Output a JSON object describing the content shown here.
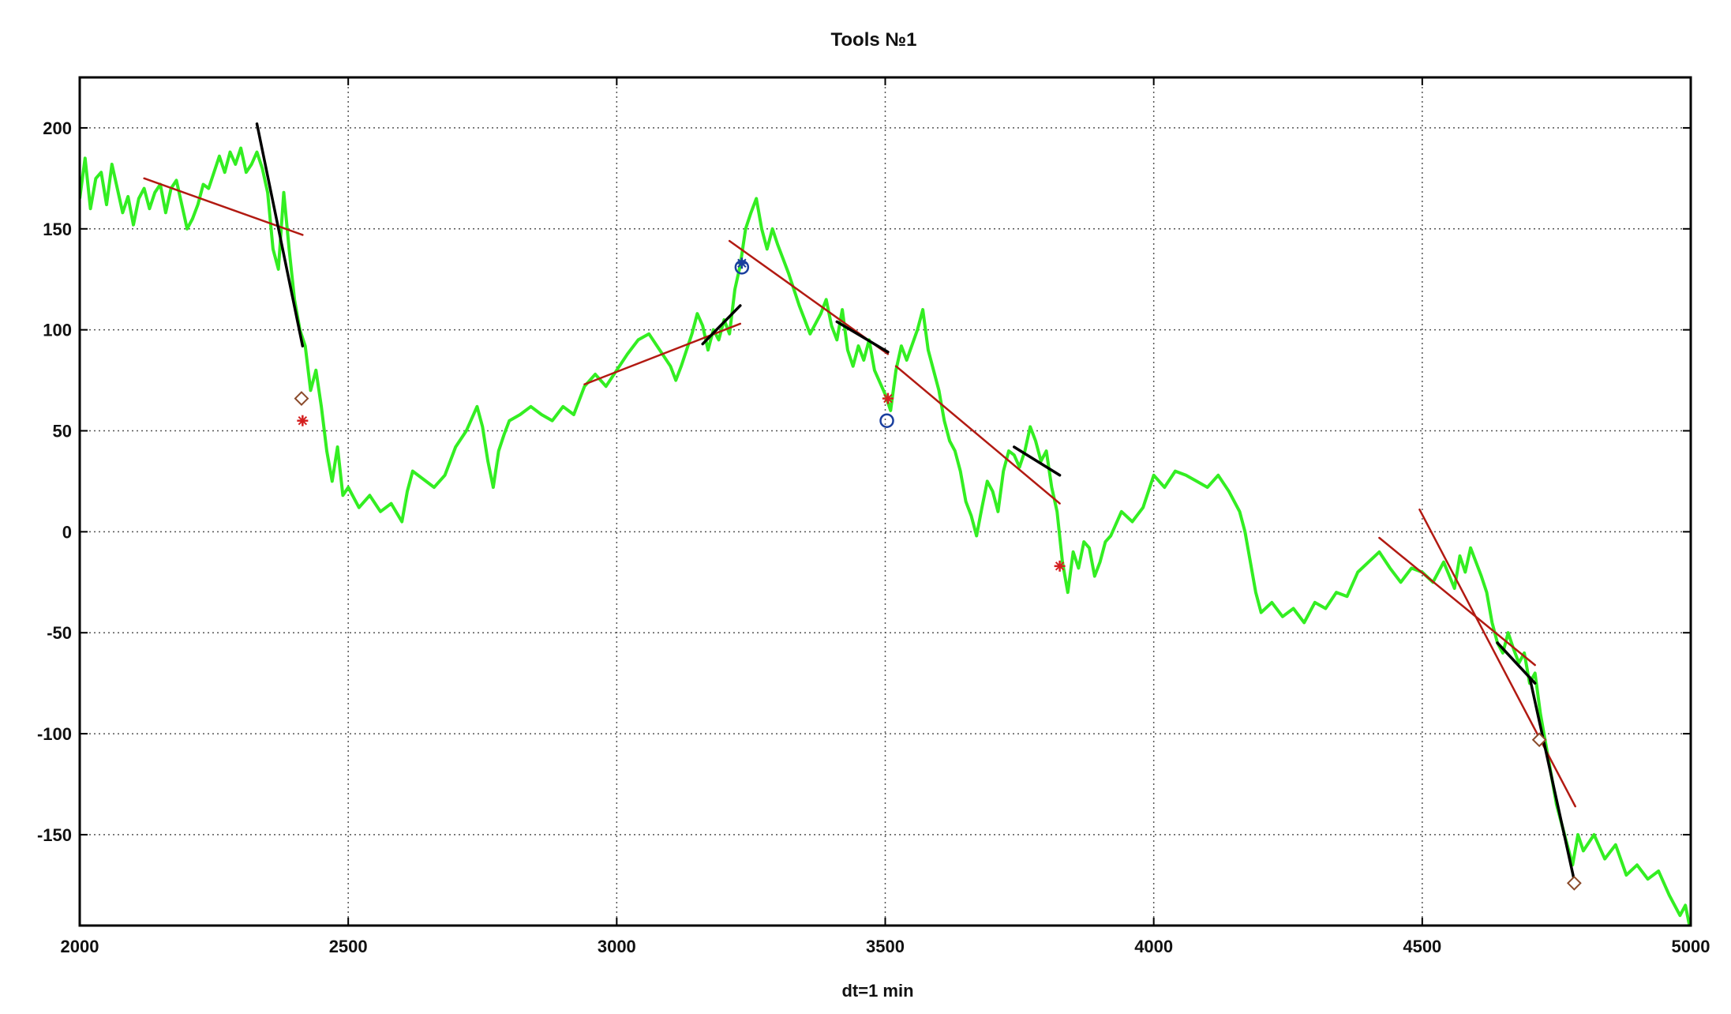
{
  "chart_data": {
    "type": "line",
    "title": "Tools №1",
    "xlabel": "dt=1 min",
    "ylabel": "",
    "xlim": [
      2000,
      5000
    ],
    "ylim": [
      -195,
      225
    ],
    "x_ticks": [
      2000,
      2500,
      3000,
      3500,
      4000,
      4500,
      5000
    ],
    "y_ticks": [
      -150,
      -100,
      -50,
      0,
      50,
      100,
      150,
      200
    ],
    "x_tick_labels": [
      "2000",
      "2500",
      "3000",
      "3500",
      "4000",
      "4500",
      "5000"
    ],
    "y_tick_labels": [
      "-150",
      "-100",
      "-50",
      "0",
      "50",
      "100",
      "150",
      "200"
    ],
    "grid": true,
    "colors": {
      "price": "#33ee22",
      "trend_red": "#b21a12",
      "trend_black": "#000000",
      "marker_red": "#d42020",
      "marker_blue": "#1a3f9e",
      "marker_diamond": "#8a4a2a"
    },
    "series": [
      {
        "color": "#33ee22",
        "points": [
          [
            2000,
            165
          ],
          [
            2010,
            185
          ],
          [
            2020,
            160
          ],
          [
            2030,
            175
          ],
          [
            2040,
            178
          ],
          [
            2050,
            162
          ],
          [
            2060,
            182
          ],
          [
            2070,
            170
          ],
          [
            2080,
            158
          ],
          [
            2090,
            166
          ],
          [
            2100,
            152
          ],
          [
            2110,
            165
          ],
          [
            2120,
            170
          ],
          [
            2130,
            160
          ],
          [
            2140,
            168
          ],
          [
            2150,
            172
          ],
          [
            2160,
            158
          ],
          [
            2170,
            170
          ],
          [
            2180,
            174
          ],
          [
            2190,
            162
          ],
          [
            2200,
            150
          ],
          [
            2210,
            155
          ],
          [
            2220,
            162
          ],
          [
            2230,
            172
          ],
          [
            2240,
            170
          ],
          [
            2250,
            178
          ],
          [
            2260,
            186
          ],
          [
            2270,
            178
          ],
          [
            2280,
            188
          ],
          [
            2290,
            182
          ],
          [
            2300,
            190
          ],
          [
            2310,
            178
          ],
          [
            2320,
            182
          ],
          [
            2330,
            188
          ],
          [
            2340,
            180
          ],
          [
            2350,
            168
          ],
          [
            2360,
            140
          ],
          [
            2370,
            130
          ],
          [
            2380,
            168
          ],
          [
            2390,
            140
          ],
          [
            2400,
            115
          ],
          [
            2410,
            100
          ],
          [
            2420,
            92
          ],
          [
            2430,
            70
          ],
          [
            2440,
            80
          ],
          [
            2450,
            62
          ],
          [
            2460,
            40
          ],
          [
            2470,
            25
          ],
          [
            2480,
            42
          ],
          [
            2490,
            18
          ],
          [
            2500,
            22
          ],
          [
            2520,
            12
          ],
          [
            2540,
            18
          ],
          [
            2560,
            10
          ],
          [
            2580,
            14
          ],
          [
            2600,
            5
          ],
          [
            2610,
            20
          ],
          [
            2620,
            30
          ],
          [
            2640,
            26
          ],
          [
            2660,
            22
          ],
          [
            2680,
            28
          ],
          [
            2700,
            42
          ],
          [
            2720,
            50
          ],
          [
            2740,
            62
          ],
          [
            2750,
            52
          ],
          [
            2760,
            35
          ],
          [
            2770,
            22
          ],
          [
            2780,
            40
          ],
          [
            2790,
            48
          ],
          [
            2800,
            55
          ],
          [
            2820,
            58
          ],
          [
            2840,
            62
          ],
          [
            2860,
            58
          ],
          [
            2880,
            55
          ],
          [
            2900,
            62
          ],
          [
            2920,
            58
          ],
          [
            2940,
            72
          ],
          [
            2960,
            78
          ],
          [
            2980,
            72
          ],
          [
            3000,
            80
          ],
          [
            3020,
            88
          ],
          [
            3040,
            95
          ],
          [
            3060,
            98
          ],
          [
            3080,
            90
          ],
          [
            3100,
            82
          ],
          [
            3110,
            75
          ],
          [
            3120,
            82
          ],
          [
            3140,
            98
          ],
          [
            3150,
            108
          ],
          [
            3160,
            102
          ],
          [
            3170,
            90
          ],
          [
            3180,
            100
          ],
          [
            3190,
            95
          ],
          [
            3200,
            105
          ],
          [
            3210,
            98
          ],
          [
            3220,
            120
          ],
          [
            3230,
            132
          ],
          [
            3240,
            150
          ],
          [
            3250,
            158
          ],
          [
            3260,
            165
          ],
          [
            3270,
            150
          ],
          [
            3280,
            140
          ],
          [
            3290,
            150
          ],
          [
            3300,
            142
          ],
          [
            3310,
            135
          ],
          [
            3320,
            128
          ],
          [
            3330,
            120
          ],
          [
            3340,
            112
          ],
          [
            3350,
            105
          ],
          [
            3360,
            98
          ],
          [
            3380,
            108
          ],
          [
            3390,
            115
          ],
          [
            3400,
            102
          ],
          [
            3410,
            95
          ],
          [
            3420,
            110
          ],
          [
            3430,
            90
          ],
          [
            3440,
            82
          ],
          [
            3450,
            92
          ],
          [
            3460,
            85
          ],
          [
            3470,
            95
          ],
          [
            3480,
            80
          ],
          [
            3500,
            68
          ],
          [
            3510,
            60
          ],
          [
            3520,
            80
          ],
          [
            3530,
            92
          ],
          [
            3540,
            85
          ],
          [
            3560,
            100
          ],
          [
            3570,
            110
          ],
          [
            3580,
            90
          ],
          [
            3590,
            80
          ],
          [
            3600,
            70
          ],
          [
            3610,
            55
          ],
          [
            3620,
            45
          ],
          [
            3630,
            40
          ],
          [
            3640,
            30
          ],
          [
            3650,
            15
          ],
          [
            3660,
            8
          ],
          [
            3670,
            -2
          ],
          [
            3680,
            12
          ],
          [
            3690,
            25
          ],
          [
            3700,
            20
          ],
          [
            3710,
            10
          ],
          [
            3720,
            30
          ],
          [
            3730,
            40
          ],
          [
            3740,
            38
          ],
          [
            3750,
            32
          ],
          [
            3760,
            40
          ],
          [
            3770,
            52
          ],
          [
            3780,
            45
          ],
          [
            3790,
            35
          ],
          [
            3800,
            40
          ],
          [
            3810,
            22
          ],
          [
            3820,
            10
          ],
          [
            3830,
            -15
          ],
          [
            3840,
            -30
          ],
          [
            3850,
            -10
          ],
          [
            3860,
            -18
          ],
          [
            3870,
            -5
          ],
          [
            3880,
            -8
          ],
          [
            3890,
            -22
          ],
          [
            3900,
            -15
          ],
          [
            3910,
            -5
          ],
          [
            3920,
            -2
          ],
          [
            3940,
            10
          ],
          [
            3960,
            5
          ],
          [
            3980,
            12
          ],
          [
            4000,
            28
          ],
          [
            4020,
            22
          ],
          [
            4040,
            30
          ],
          [
            4060,
            28
          ],
          [
            4080,
            25
          ],
          [
            4100,
            22
          ],
          [
            4120,
            28
          ],
          [
            4140,
            20
          ],
          [
            4160,
            10
          ],
          [
            4170,
            0
          ],
          [
            4180,
            -15
          ],
          [
            4190,
            -30
          ],
          [
            4200,
            -40
          ],
          [
            4220,
            -35
          ],
          [
            4240,
            -42
          ],
          [
            4260,
            -38
          ],
          [
            4280,
            -45
          ],
          [
            4300,
            -35
          ],
          [
            4320,
            -38
          ],
          [
            4340,
            -30
          ],
          [
            4360,
            -32
          ],
          [
            4380,
            -20
          ],
          [
            4400,
            -15
          ],
          [
            4420,
            -10
          ],
          [
            4440,
            -18
          ],
          [
            4460,
            -25
          ],
          [
            4480,
            -18
          ],
          [
            4500,
            -20
          ],
          [
            4520,
            -25
          ],
          [
            4540,
            -15
          ],
          [
            4560,
            -28
          ],
          [
            4570,
            -12
          ],
          [
            4580,
            -20
          ],
          [
            4590,
            -8
          ],
          [
            4600,
            -15
          ],
          [
            4610,
            -22
          ],
          [
            4620,
            -30
          ],
          [
            4630,
            -45
          ],
          [
            4640,
            -55
          ],
          [
            4650,
            -60
          ],
          [
            4660,
            -50
          ],
          [
            4670,
            -58
          ],
          [
            4680,
            -65
          ],
          [
            4690,
            -60
          ],
          [
            4700,
            -75
          ],
          [
            4710,
            -70
          ],
          [
            4720,
            -90
          ],
          [
            4730,
            -105
          ],
          [
            4740,
            -120
          ],
          [
            4750,
            -135
          ],
          [
            4760,
            -145
          ],
          [
            4770,
            -155
          ],
          [
            4780,
            -165
          ],
          [
            4790,
            -150
          ],
          [
            4800,
            -158
          ],
          [
            4820,
            -150
          ],
          [
            4840,
            -162
          ],
          [
            4860,
            -155
          ],
          [
            4880,
            -170
          ],
          [
            4900,
            -165
          ],
          [
            4920,
            -172
          ],
          [
            4940,
            -168
          ],
          [
            4960,
            -180
          ],
          [
            4980,
            -190
          ],
          [
            4990,
            -185
          ],
          [
            5000,
            -198
          ]
        ]
      }
    ],
    "trend_lines": [
      {
        "color": "red",
        "x1": 2120,
        "y1": 175,
        "x2": 2415,
        "y2": 147
      },
      {
        "color": "black",
        "x1": 2330,
        "y1": 202,
        "x2": 2415,
        "y2": 92
      },
      {
        "color": "red",
        "x1": 2940,
        "y1": 73,
        "x2": 3230,
        "y2": 103
      },
      {
        "color": "black",
        "x1": 3160,
        "y1": 93,
        "x2": 3230,
        "y2": 112
      },
      {
        "color": "red",
        "x1": 3210,
        "y1": 144,
        "x2": 3505,
        "y2": 88
      },
      {
        "color": "black",
        "x1": 3410,
        "y1": 104,
        "x2": 3505,
        "y2": 89
      },
      {
        "color": "red",
        "x1": 3520,
        "y1": 82,
        "x2": 3825,
        "y2": 14
      },
      {
        "color": "black",
        "x1": 3740,
        "y1": 42,
        "x2": 3825,
        "y2": 28
      },
      {
        "color": "red",
        "x1": 4420,
        "y1": -3,
        "x2": 4710,
        "y2": -66
      },
      {
        "color": "red",
        "x1": 4495,
        "y1": 11,
        "x2": 4785,
        "y2": -136
      },
      {
        "color": "black",
        "x1": 4640,
        "y1": -55,
        "x2": 4710,
        "y2": -75
      },
      {
        "color": "black",
        "x1": 4700,
        "y1": -72,
        "x2": 4785,
        "y2": -175
      }
    ],
    "markers": [
      {
        "shape": "diamond",
        "x": 2413,
        "y": 66
      },
      {
        "shape": "star",
        "x": 2415,
        "y": 55
      },
      {
        "shape": "circle-blue",
        "x": 3233,
        "y": 131
      },
      {
        "shape": "star-blue",
        "x": 3233,
        "y": 133
      },
      {
        "shape": "circle-blue",
        "x": 3503,
        "y": 55
      },
      {
        "shape": "star",
        "x": 3505,
        "y": 66
      },
      {
        "shape": "star",
        "x": 3825,
        "y": -17
      },
      {
        "shape": "diamond",
        "x": 4718,
        "y": -103
      },
      {
        "shape": "diamond",
        "x": 4783,
        "y": -174
      }
    ]
  }
}
